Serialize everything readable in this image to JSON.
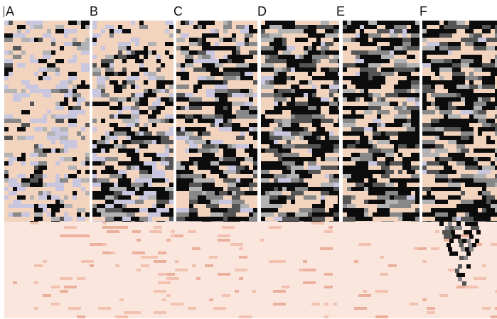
{
  "panels": [
    {
      "label": "A",
      "darkness": 0.12,
      "ramp": 0.1,
      "lavender": 0.45,
      "seed": 11
    },
    {
      "label": "B",
      "darkness": 0.15,
      "ramp": 0.55,
      "lavender": 0.4,
      "seed": 23
    },
    {
      "label": "C",
      "darkness": 0.45,
      "ramp": 0.3,
      "lavender": 0.15,
      "seed": 37
    },
    {
      "label": "D",
      "darkness": 0.62,
      "ramp": 0.05,
      "lavender": 0.08,
      "seed": 41
    },
    {
      "label": "E",
      "darkness": 0.66,
      "ramp": 0.02,
      "lavender": 0.05,
      "seed": 53
    },
    {
      "label": "F",
      "darkness": 0.68,
      "ramp": 0.0,
      "lavender": 0.04,
      "seed": 67
    }
  ],
  "colors": {
    "peach": "#f2d3bd",
    "lavender": "#c9c6e0",
    "light_gray": "#b3b3b3",
    "mid_gray": "#888888",
    "dark_gray": "#555555",
    "black": "#0c0c0c",
    "pink_bg": "#fbe6de",
    "pink_mark": "#f2c2b0",
    "pink_mark_strong": "#eab09c",
    "separator": "#ffffff"
  },
  "pink_mark_density": 0.05
}
